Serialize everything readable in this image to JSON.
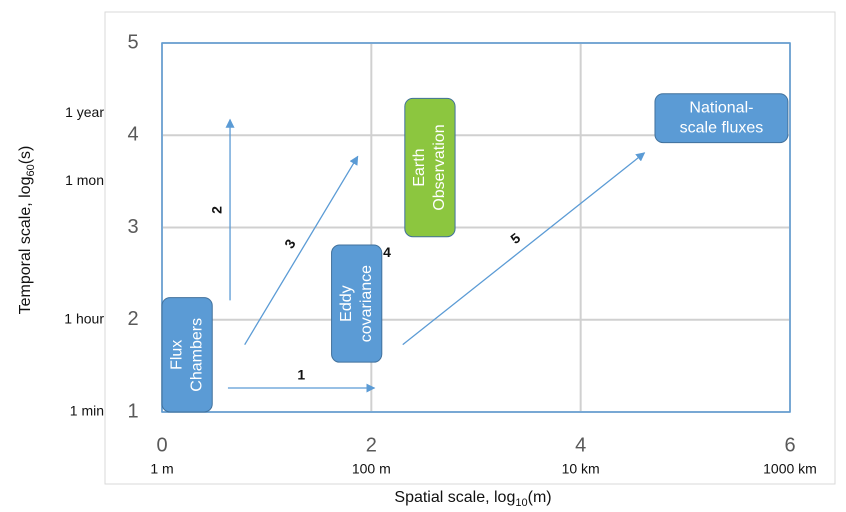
{
  "chart_data": {
    "type": "scale-diagram",
    "x_label": {
      "text": "Spatial scale, log",
      "sub": "10",
      "suffix": "(m)"
    },
    "y_label": {
      "text": "Temporal scale, log",
      "sub": "60",
      "suffix": "(s)"
    },
    "xlim": [
      0,
      6
    ],
    "ylim": [
      1,
      5
    ],
    "xticks": [
      0,
      2,
      4,
      6
    ],
    "yticks": [
      1,
      2,
      3,
      4,
      5
    ],
    "x_unit_ticks": [
      {
        "value": 0,
        "label": "1 m"
      },
      {
        "value": 2,
        "label": "100 m"
      },
      {
        "value": 4,
        "label": "10 km"
      },
      {
        "value": 6,
        "label": "1000 km"
      }
    ],
    "y_unit_ticks": [
      {
        "value": 1,
        "label": "1 min"
      },
      {
        "value": 2,
        "label": "1 hour"
      },
      {
        "value": 3.5,
        "label": "1 mon"
      },
      {
        "value": 4.24,
        "label": "1 year"
      }
    ],
    "grid": true,
    "boxes": [
      {
        "lines": [
          "Flux",
          "Chambers"
        ],
        "x": [
          0,
          0.48
        ],
        "y": [
          1,
          2.24
        ],
        "color": "#5b9bd5",
        "vertical": true
      },
      {
        "lines": [
          "Eddy",
          "covariance"
        ],
        "x": [
          1.62,
          2.1
        ],
        "y": [
          1.54,
          2.81
        ],
        "color": "#5b9bd5",
        "vertical": true
      },
      {
        "lines": [
          "Earth",
          "Observation"
        ],
        "x": [
          2.32,
          2.8
        ],
        "y": [
          2.9,
          4.4
        ],
        "color": "#8cc63f",
        "vertical": true
      },
      {
        "lines": [
          "National-",
          "scale fluxes"
        ],
        "x": [
          4.71,
          5.98
        ],
        "y": [
          3.92,
          4.45
        ],
        "color": "#5b9bd5",
        "vertical": false
      }
    ],
    "arrows": [
      {
        "label": "1",
        "x": [
          0.63,
          2.03
        ],
        "y": [
          1.26,
          1.26
        ]
      },
      {
        "label": "2",
        "x": [
          0.65,
          0.65
        ],
        "y": [
          2.21,
          4.17
        ]
      },
      {
        "label": "3",
        "x": [
          0.79,
          1.87
        ],
        "y": [
          1.73,
          3.77
        ]
      },
      {
        "label": "5",
        "x": [
          2.3,
          4.61
        ],
        "y": [
          1.73,
          3.81
        ]
      }
    ],
    "annotations": [
      {
        "label": "4",
        "x": 2.15,
        "y": 2.72
      }
    ]
  }
}
